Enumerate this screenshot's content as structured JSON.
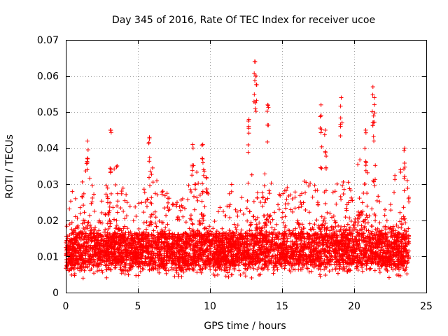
{
  "chart_data": {
    "type": "scatter",
    "title": "Day 345 of 2016, Rate Of TEC Index for receiver ucoe",
    "xlabel": "GPS time / hours",
    "ylabel": "ROTI / TECUs",
    "xlim": [
      0,
      25
    ],
    "ylim": [
      0,
      0.07
    ],
    "xticks": [
      0,
      5,
      10,
      15,
      20,
      25
    ],
    "yticks": [
      0,
      0.01,
      0.02,
      0.03,
      0.04,
      0.05,
      0.06,
      0.07
    ],
    "xtick_labels": [
      "0",
      "5",
      "10",
      "15",
      "20",
      "25"
    ],
    "ytick_labels": [
      "0",
      "0.01",
      "0.02",
      "0.03",
      "0.04",
      "0.05",
      "0.06",
      "0.07"
    ],
    "grid": true,
    "marker": "+",
    "series_color": "#ff0000",
    "data_range_x": [
      0,
      23.8
    ],
    "baseline_value": 0.012,
    "notable_peaks": [
      {
        "x": 1.5,
        "y": 0.042
      },
      {
        "x": 3.1,
        "y": 0.045
      },
      {
        "x": 5.8,
        "y": 0.043
      },
      {
        "x": 8.8,
        "y": 0.041
      },
      {
        "x": 9.5,
        "y": 0.041
      },
      {
        "x": 12.7,
        "y": 0.048
      },
      {
        "x": 13.1,
        "y": 0.064
      },
      {
        "x": 13.2,
        "y": 0.06
      },
      {
        "x": 14.0,
        "y": 0.052
      },
      {
        "x": 17.7,
        "y": 0.052
      },
      {
        "x": 18.0,
        "y": 0.045
      },
      {
        "x": 19.1,
        "y": 0.054
      },
      {
        "x": 20.8,
        "y": 0.045
      },
      {
        "x": 21.3,
        "y": 0.057
      },
      {
        "x": 21.4,
        "y": 0.054
      },
      {
        "x": 23.5,
        "y": 0.04
      }
    ],
    "envelope": [
      {
        "x": 0.0,
        "y": 0.02
      },
      {
        "x": 0.5,
        "y": 0.029
      },
      {
        "x": 1.0,
        "y": 0.032
      },
      {
        "x": 1.5,
        "y": 0.036
      },
      {
        "x": 2.0,
        "y": 0.03
      },
      {
        "x": 2.5,
        "y": 0.028
      },
      {
        "x": 3.0,
        "y": 0.034
      },
      {
        "x": 3.5,
        "y": 0.036
      },
      {
        "x": 4.0,
        "y": 0.03
      },
      {
        "x": 4.5,
        "y": 0.028
      },
      {
        "x": 5.0,
        "y": 0.025
      },
      {
        "x": 5.5,
        "y": 0.03
      },
      {
        "x": 6.0,
        "y": 0.035
      },
      {
        "x": 6.5,
        "y": 0.03
      },
      {
        "x": 7.0,
        "y": 0.028
      },
      {
        "x": 7.5,
        "y": 0.025
      },
      {
        "x": 8.0,
        "y": 0.026
      },
      {
        "x": 8.5,
        "y": 0.03
      },
      {
        "x": 9.0,
        "y": 0.034
      },
      {
        "x": 9.5,
        "y": 0.038
      },
      {
        "x": 10.0,
        "y": 0.03
      },
      {
        "x": 10.5,
        "y": 0.026
      },
      {
        "x": 11.0,
        "y": 0.028
      },
      {
        "x": 11.5,
        "y": 0.03
      },
      {
        "x": 12.0,
        "y": 0.027
      },
      {
        "x": 12.5,
        "y": 0.03
      },
      {
        "x": 13.0,
        "y": 0.036
      },
      {
        "x": 13.5,
        "y": 0.03
      },
      {
        "x": 14.0,
        "y": 0.038
      },
      {
        "x": 14.5,
        "y": 0.032
      },
      {
        "x": 15.0,
        "y": 0.028
      },
      {
        "x": 15.5,
        "y": 0.03
      },
      {
        "x": 16.0,
        "y": 0.032
      },
      {
        "x": 16.5,
        "y": 0.034
      },
      {
        "x": 17.0,
        "y": 0.03
      },
      {
        "x": 17.5,
        "y": 0.034
      },
      {
        "x": 18.0,
        "y": 0.036
      },
      {
        "x": 18.5,
        "y": 0.034
      },
      {
        "x": 19.0,
        "y": 0.032
      },
      {
        "x": 19.5,
        "y": 0.03
      },
      {
        "x": 20.0,
        "y": 0.034
      },
      {
        "x": 20.5,
        "y": 0.038
      },
      {
        "x": 21.0,
        "y": 0.036
      },
      {
        "x": 21.5,
        "y": 0.036
      },
      {
        "x": 22.0,
        "y": 0.032
      },
      {
        "x": 22.5,
        "y": 0.03
      },
      {
        "x": 23.0,
        "y": 0.034
      },
      {
        "x": 23.5,
        "y": 0.036
      },
      {
        "x": 23.8,
        "y": 0.03
      }
    ]
  }
}
